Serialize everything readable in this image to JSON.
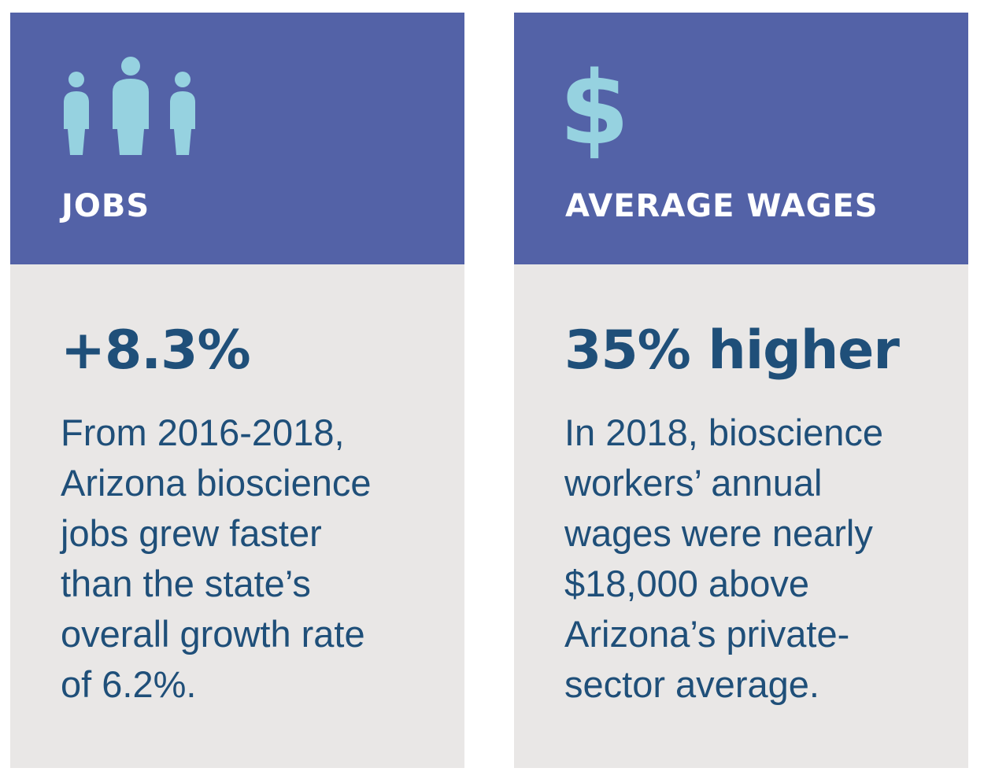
{
  "colors": {
    "header_bg": "#5362a7",
    "body_bg": "#e9e7e6",
    "icon": "#96d2e0",
    "heading_text": "#ffffff",
    "stat_text": "#1f4f79"
  },
  "cards": [
    {
      "icon": "people-icon",
      "title": "JOBS",
      "value": "+8.3%",
      "description_lines": [
        "From 2016-2018,",
        "Arizona bioscience",
        "jobs grew faster",
        "than the state’s",
        "overall growth rate",
        "of 6.2%."
      ]
    },
    {
      "icon": "dollar-icon",
      "icon_glyph": "$",
      "title": "AVERAGE WAGES",
      "value": "35% higher",
      "description_lines": [
        "In 2018, bioscience",
        "workers’ annual",
        "wages were nearly",
        "$18,000 above",
        "Arizona’s private-",
        "sector average."
      ]
    }
  ]
}
